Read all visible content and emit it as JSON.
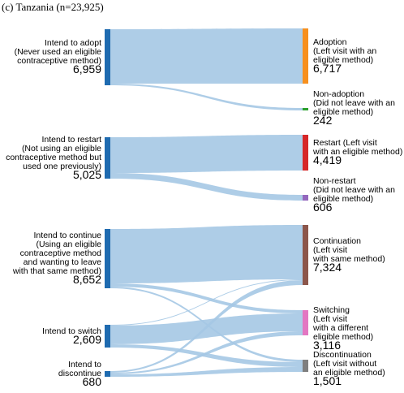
{
  "title": "(c) Tanzania (n=23,925)",
  "sources": [
    {
      "label_lines": [
        "Intend to adopt",
        "(Never used an eligible",
        "contraceptive method)"
      ],
      "value": "6,959",
      "color": "#1f6bb0"
    },
    {
      "label_lines": [
        "Intend to restart",
        "(Not using an eligible",
        "contraceptive method but",
        "used one previously)"
      ],
      "value": "5,025",
      "color": "#1f6bb0"
    },
    {
      "label_lines": [
        "Intend to continue",
        "(Using an eligible",
        "contraceptive method",
        "and wanting to leave",
        "with that same method)"
      ],
      "value": "8,652",
      "color": "#1f6bb0"
    },
    {
      "label_lines": [
        "Intend to switch"
      ],
      "value": "2,609",
      "color": "#1f6bb0"
    },
    {
      "label_lines": [
        "Intend to",
        "discontinue"
      ],
      "value": "680",
      "color": "#1f6bb0"
    }
  ],
  "targets": [
    {
      "label_lines": [
        "Adoption",
        "(Left visit with an",
        "eligible method)"
      ],
      "value": "6,717",
      "color": "#f7901e"
    },
    {
      "label_lines": [
        "Non-adoption",
        "(Did not leave with an",
        "eligible method)"
      ],
      "value": "242",
      "color": "#2ca02c"
    },
    {
      "label_lines": [
        "Restart (Left visit",
        "with an eligible method)"
      ],
      "value": "4,419",
      "color": "#d62728"
    },
    {
      "label_lines": [
        "Non-restart",
        "(Did not leave with an",
        "eligible method)"
      ],
      "value": "606",
      "color": "#9467bd"
    },
    {
      "label_lines": [
        "Continuation",
        "(Left visit",
        "with same method)"
      ],
      "value": "7,324",
      "color": "#8c564b"
    },
    {
      "label_lines": [
        "Switching",
        "(Left visit",
        "with a different",
        "eligible method)"
      ],
      "value": "3,116",
      "color": "#e377c2"
    },
    {
      "label_lines": [
        "Discontinuation",
        "(Left visit without",
        "an eligible method)"
      ],
      "value": "1,501",
      "color": "#7f7f7f"
    }
  ],
  "link_color": "#a5c8e4"
}
